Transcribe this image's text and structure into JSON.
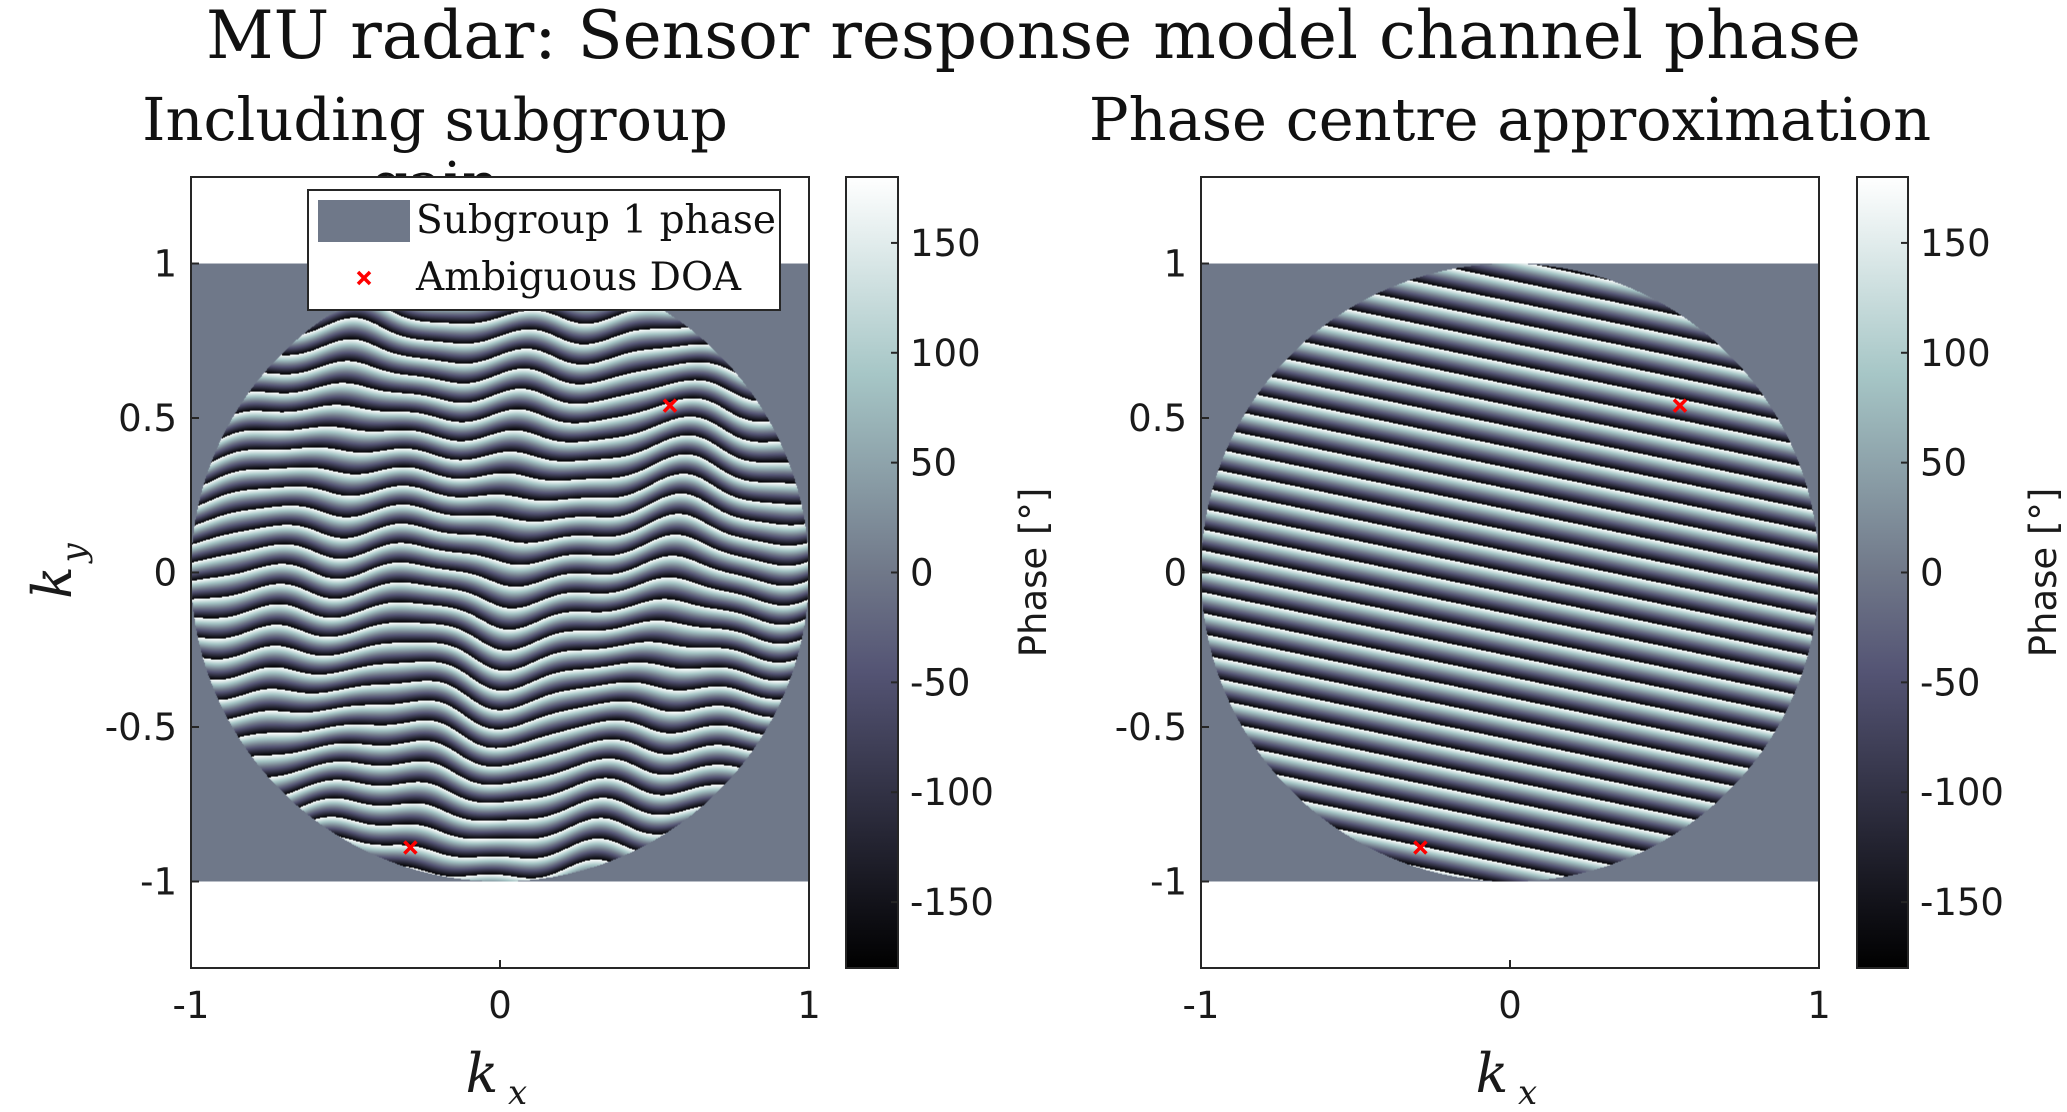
{
  "figure": {
    "title": "MU radar: Sensor response model channel phase"
  },
  "chart_data": [
    {
      "type": "heatmap",
      "title": "Including subgroup gain",
      "xlabel": "k",
      "xlabel_sub": "x",
      "ylabel": "k",
      "ylabel_sub": "y",
      "xlim": [
        -1,
        1
      ],
      "ylim": [
        -1.28,
        1.28
      ],
      "xticks": [
        -1,
        0,
        1
      ],
      "xtick_labels": [
        "-1",
        "0",
        "1"
      ],
      "yticks": [
        1,
        0.5,
        0,
        -0.5,
        -1
      ],
      "ytick_labels": [
        "1",
        "0.5",
        "0",
        "-0.5",
        "-1"
      ],
      "field": "horizon disk |k| <= 1, wrapped phase with irregular band pattern",
      "subgroup_phase_region": {
        "x": [
          -1,
          1
        ],
        "y": [
          -1,
          1
        ]
      },
      "colorbar": {
        "label": "Phase [°]",
        "range": [
          -180,
          180
        ],
        "ticks": [
          150,
          100,
          50,
          0,
          -50,
          -100,
          -150
        ],
        "tick_labels": [
          "150",
          "100",
          "50",
          "0",
          "-50",
          "-100",
          "-150"
        ],
        "colormap": "bone"
      },
      "legend": {
        "position": "top-right",
        "entries": [
          {
            "label": "Subgroup 1 phase",
            "color": "#6f7889",
            "marker": "patch"
          },
          {
            "label": "Ambiguous DOA",
            "color": "#ff0000",
            "marker": "x"
          }
        ]
      },
      "points": [
        {
          "series": "Ambiguous DOA",
          "kx": 0.55,
          "ky": 0.54
        },
        {
          "series": "Ambiguous DOA",
          "kx": -0.29,
          "ky": -0.89
        }
      ]
    },
    {
      "type": "heatmap",
      "title": "Phase centre approximation",
      "xlabel": "k",
      "xlabel_sub": "x",
      "ylabel": "",
      "xlim": [
        -1,
        1
      ],
      "ylim": [
        -1.28,
        1.28
      ],
      "xticks": [
        -1,
        0,
        1
      ],
      "xtick_labels": [
        "-1",
        "0",
        "1"
      ],
      "yticks": [
        1,
        0.5,
        0,
        -0.5,
        -1
      ],
      "ytick_labels": [
        "1",
        "0.5",
        "0",
        "-0.5",
        "-1"
      ],
      "field": "horizon disk |k| <= 1, wrapped linear phase, approx 15 bands tilted by about 12 degrees",
      "subgroup_phase_region": {
        "x": [
          -1,
          1
        ],
        "y": [
          -1,
          1
        ]
      },
      "colorbar": {
        "label": "Phase [°]",
        "range": [
          -180,
          180
        ],
        "ticks": [
          150,
          100,
          50,
          0,
          -50,
          -100,
          -150
        ],
        "tick_labels": [
          "150",
          "100",
          "50",
          "0",
          "-50",
          "-100",
          "-150"
        ],
        "colormap": "bone"
      },
      "points": [
        {
          "series": "Ambiguous DOA",
          "kx": 0.55,
          "ky": 0.54
        },
        {
          "series": "Ambiguous DOA",
          "kx": -0.29,
          "ky": -0.89
        }
      ]
    }
  ],
  "colors": {
    "subgroup_phase": "#6f7889",
    "doa_marker": "#ff0000",
    "axes": "#262626"
  }
}
